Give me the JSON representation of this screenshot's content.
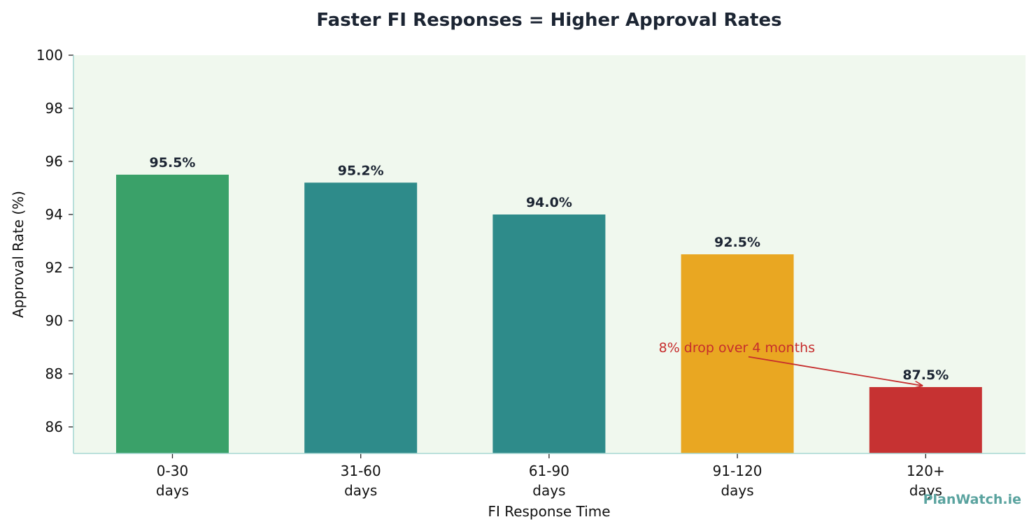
{
  "chart_data": {
    "type": "bar",
    "title": "Faster FI Responses = Higher Approval Rates",
    "xlabel": "FI Response Time",
    "ylabel": "Approval Rate (%)",
    "categories": [
      [
        "0-30",
        "days"
      ],
      [
        "31-60",
        "days"
      ],
      [
        "61-90",
        "days"
      ],
      [
        "91-120",
        "days"
      ],
      [
        "120+",
        "days"
      ]
    ],
    "values": [
      95.5,
      95.2,
      94.0,
      92.5,
      87.5
    ],
    "value_labels": [
      "95.5%",
      "95.2%",
      "94.0%",
      "92.5%",
      "87.5%"
    ],
    "bar_colors": [
      "#3aa169",
      "#2e8b8a",
      "#2e8b8a",
      "#e9a722",
      "#c63232"
    ],
    "ylim": [
      85,
      100
    ],
    "yticks": [
      86,
      88,
      90,
      92,
      94,
      96,
      98,
      100
    ],
    "grid": false,
    "legend": "none",
    "annotation": {
      "text": "8% drop over 4 months",
      "text_anchor": {
        "x": 3,
        "y": 89.0
      },
      "arrow_tail": {
        "x": 3.2,
        "y": 88.8
      },
      "arrow_head": {
        "x": 4,
        "y": 87.5
      },
      "color": "#c62d2d"
    },
    "colors": {
      "plot_background": "#f0f8ee",
      "spine": "#a8d8d4",
      "text": "#1c2533"
    }
  },
  "watermark": {
    "text": "PlanWatch.ie",
    "color": "#5aa39f"
  }
}
